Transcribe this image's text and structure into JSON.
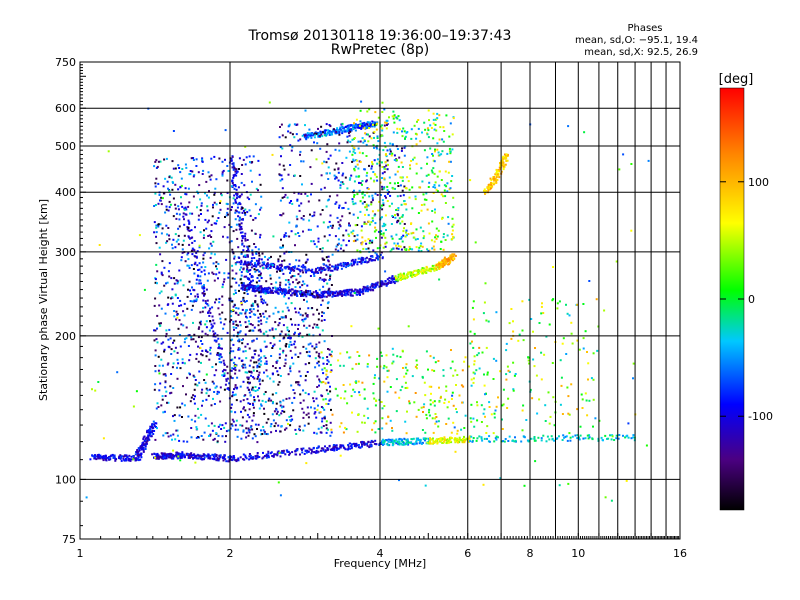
{
  "chart_data": {
    "type": "scatter",
    "title": "Tromsø 20130118 19:36:00–19:37:43",
    "subtitle": "RwPretec (8p)",
    "xlabel": "Frequency [MHz]",
    "ylabel": "Stationary phase Virtual Height [km]",
    "x_scale": "log",
    "y_scale": "log",
    "xlim": [
      1,
      16
    ],
    "ylim": [
      75,
      750
    ],
    "x_ticks": [
      1,
      2,
      4,
      6,
      8,
      10,
      16
    ],
    "y_ticks": [
      75,
      100,
      200,
      300,
      400,
      500,
      600,
      750
    ],
    "grid": true,
    "phase_info": {
      "title": "Phases",
      "line_o": "mean, sd,O: −95.1, 19.4",
      "line_x": "mean, sd,X:  92.5, 26.9"
    },
    "colorbar": {
      "label": "[deg]",
      "range": [
        -180,
        180
      ],
      "ticks": [
        100,
        0,
        -100
      ],
      "tick_labels": [
        "100",
        "0",
        "-100"
      ],
      "colormap": "rainbow"
    },
    "traces": [
      {
        "f": [
          1.05,
          1.3
        ],
        "h": [
          112,
          111
        ],
        "phase": -100
      },
      {
        "f": [
          1.3,
          1.4
        ],
        "h": [
          112,
          131
        ],
        "phase": -100
      },
      {
        "f": [
          1.4,
          1.6
        ],
        "h": [
          112,
          113
        ],
        "phase": -100
      },
      {
        "f": [
          1.6,
          2.0
        ],
        "h": [
          113,
          111
        ],
        "phase": -100
      },
      {
        "f": [
          2.0,
          3.0
        ],
        "h": [
          111,
          116
        ],
        "phase": -100
      },
      {
        "f": [
          3.0,
          4.0
        ],
        "h": [
          116,
          120
        ],
        "phase": -100
      },
      {
        "f": [
          4.0,
          5.0
        ],
        "h": [
          120,
          121
        ],
        "phase": -40
      },
      {
        "f": [
          5.0,
          6.0
        ],
        "h": [
          121,
          122
        ],
        "phase": 60
      },
      {
        "f": [
          6.0,
          13.0
        ],
        "h": [
          122,
          123
        ],
        "phase": -30
      },
      {
        "f": [
          2.1,
          2.4
        ],
        "h": [
          255,
          250
        ],
        "phase": -100
      },
      {
        "f": [
          2.4,
          3.0
        ],
        "h": [
          250,
          245
        ],
        "phase": -100
      },
      {
        "f": [
          3.0,
          3.6
        ],
        "h": [
          245,
          248
        ],
        "phase": -100
      },
      {
        "f": [
          3.6,
          4.3
        ],
        "h": [
          248,
          265
        ],
        "phase": -100
      },
      {
        "f": [
          4.3,
          5.2
        ],
        "h": [
          265,
          280
        ],
        "phase": 50
      },
      {
        "f": [
          5.2,
          5.6
        ],
        "h": [
          280,
          295
        ],
        "phase": 100
      },
      {
        "f": [
          2.1,
          3.0
        ],
        "h": [
          285,
          275
        ],
        "phase": -100
      },
      {
        "f": [
          3.0,
          4.0
        ],
        "h": [
          275,
          295
        ],
        "phase": -90
      },
      {
        "f": [
          2.8,
          3.4
        ],
        "h": [
          525,
          545
        ],
        "phase": -60
      },
      {
        "f": [
          3.4,
          3.9
        ],
        "h": [
          545,
          560
        ],
        "phase": -70
      },
      {
        "f": [
          6.5,
          7.2
        ],
        "h": [
          400,
          480
        ],
        "phase": 90
      },
      {
        "f": [
          1.6,
          2.0
        ],
        "h": [
          380,
          150
        ],
        "phase": -100
      },
      {
        "f": [
          2.0,
          2.2
        ],
        "h": [
          480,
          250
        ],
        "phase": -100
      }
    ]
  }
}
